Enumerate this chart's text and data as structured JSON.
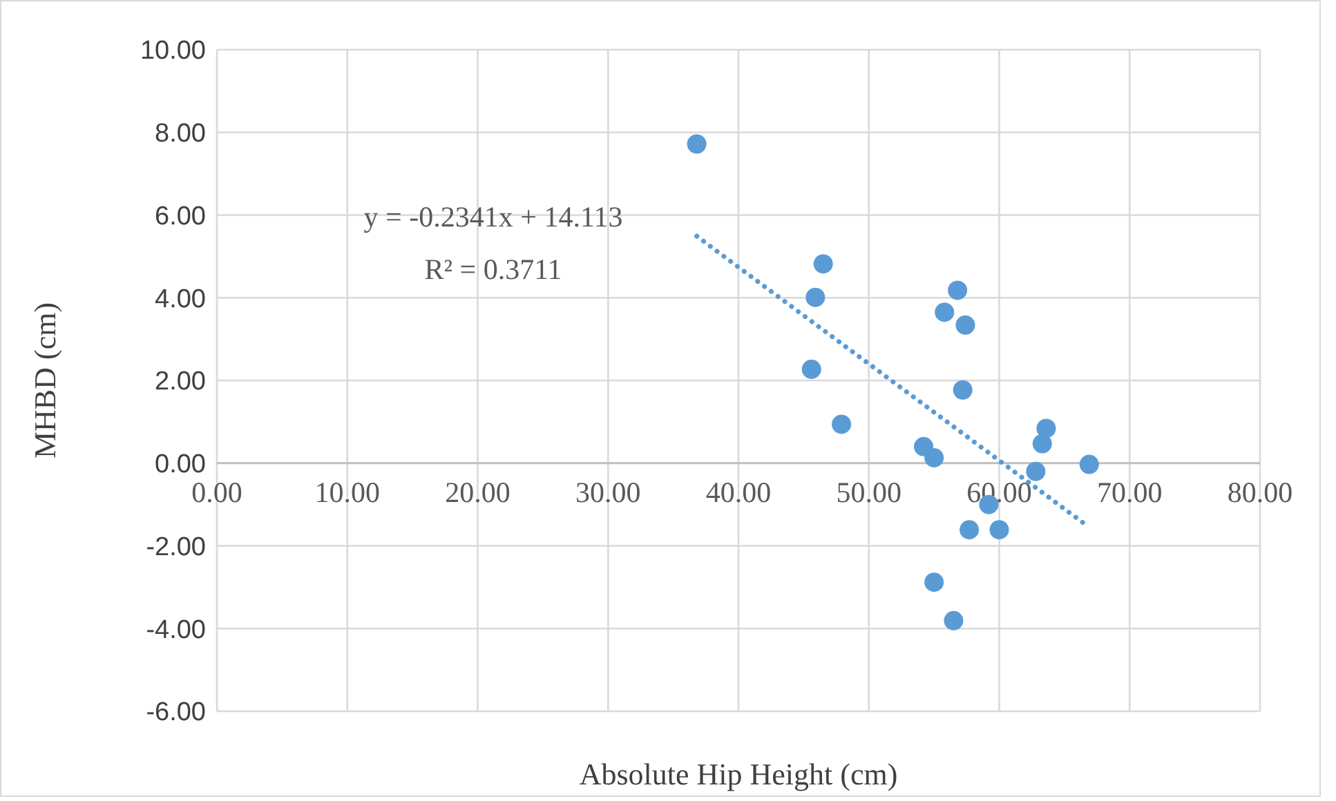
{
  "chart_data": {
    "type": "scatter",
    "xlabel": "Absolute Hip Height (cm)",
    "ylabel": "MHBD (cm)",
    "xlim": [
      0,
      80
    ],
    "ylim": [
      -6,
      10
    ],
    "xticks": [
      {
        "value": 0,
        "label": "0.00"
      },
      {
        "value": 10,
        "label": "10.00"
      },
      {
        "value": 20,
        "label": "20.00"
      },
      {
        "value": 30,
        "label": "30.00"
      },
      {
        "value": 40,
        "label": "40.00"
      },
      {
        "value": 50,
        "label": "50.00"
      },
      {
        "value": 60,
        "label": "60.00"
      },
      {
        "value": 70,
        "label": "70.00"
      },
      {
        "value": 80,
        "label": "80.00"
      }
    ],
    "yticks": [
      {
        "value": -6,
        "label": "-6.00"
      },
      {
        "value": -4,
        "label": "-4.00"
      },
      {
        "value": -2,
        "label": "-2.00"
      },
      {
        "value": 0,
        "label": "0.00"
      },
      {
        "value": 2,
        "label": "2.00"
      },
      {
        "value": 4,
        "label": "4.00"
      },
      {
        "value": 6,
        "label": "6.00"
      },
      {
        "value": 8,
        "label": "8.00"
      },
      {
        "value": 10,
        "label": "10.00"
      }
    ],
    "grid": true,
    "marker": "circle",
    "series": [
      {
        "color": "#5b9bd5",
        "x": [
          36.8,
          46.5,
          45.9,
          45.6,
          47.9,
          54.2,
          55.0,
          56.8,
          55.8,
          57.4,
          57.2,
          55.0,
          56.5,
          57.7,
          60.0,
          59.2,
          62.8,
          63.3,
          63.6,
          66.9
        ],
        "values": [
          7.72,
          4.82,
          4.01,
          2.27,
          0.94,
          0.4,
          0.13,
          4.18,
          3.65,
          3.34,
          1.77,
          -2.88,
          -3.81,
          -1.61,
          -1.61,
          -1.0,
          -0.2,
          0.47,
          0.84,
          -0.03
        ]
      },
      {
        "type": "line",
        "color": "#5b9bd5",
        "line_style": "dotted",
        "marker": "none",
        "x": [
          36.8,
          66.9
        ],
        "values": [
          5.49,
          -1.55
        ]
      }
    ],
    "annotations": [
      "y = -0.2341x + 14.113",
      "R² = 0.3711"
    ]
  }
}
